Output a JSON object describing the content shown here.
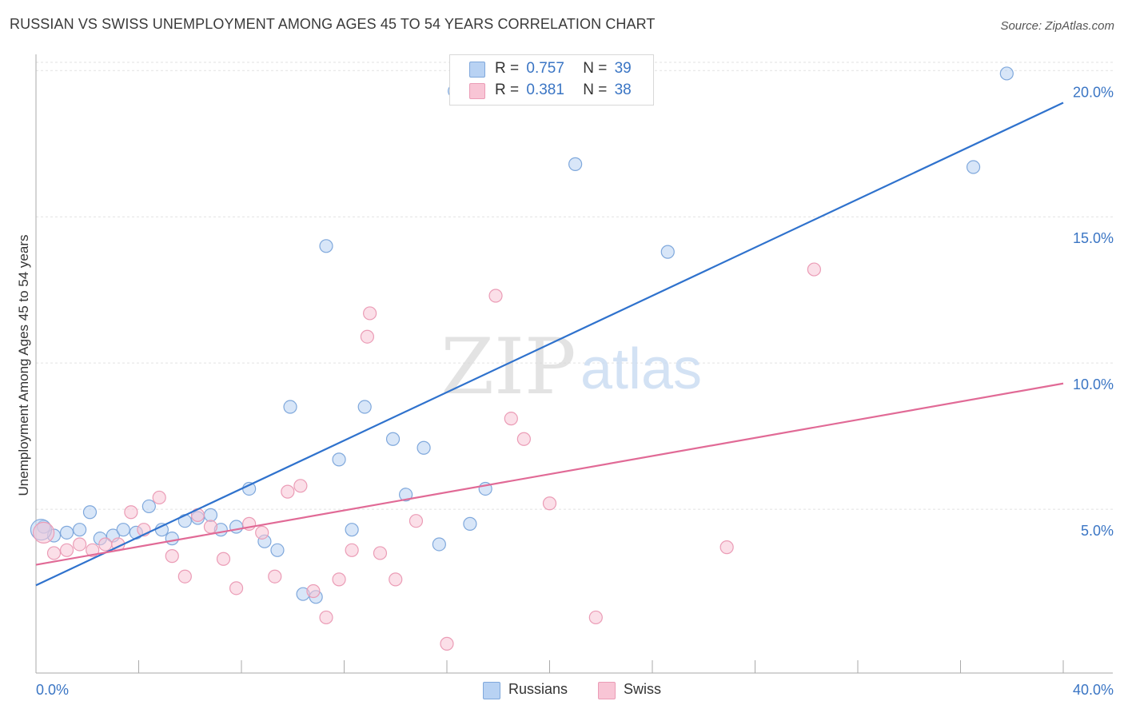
{
  "title": "RUSSIAN VS SWISS UNEMPLOYMENT AMONG AGES 45 TO 54 YEARS CORRELATION CHART",
  "source": "Source: ZipAtlas.com",
  "watermark": {
    "zip": "ZIP",
    "atlas": "atlas"
  },
  "legend_top": {
    "r_label": "R =",
    "n_label": "N =",
    "russians": {
      "r": "0.757",
      "n": "39"
    },
    "swiss": {
      "r": "0.381",
      "n": "38"
    }
  },
  "legend_bottom": {
    "russians": "Russians",
    "swiss": "Swiss"
  },
  "colors": {
    "russians_fill": "#b8d2f3",
    "russians_stroke": "#7fa8dc",
    "russians_line": "#2f72cd",
    "swiss_fill": "#f8c5d5",
    "swiss_stroke": "#eb9cb6",
    "swiss_line": "#e16a96",
    "axis_text": "#3a75c4",
    "grid": "#e2e2e2"
  },
  "chart_data": {
    "type": "scatter",
    "title": "RUSSIAN VS SWISS UNEMPLOYMENT AMONG AGES 45 TO 54 YEARS CORRELATION CHART",
    "xlabel": "",
    "ylabel": "Unemployment Among Ages 45 to 54 years",
    "xlim": [
      0,
      40
    ],
    "ylim": [
      0,
      20.5
    ],
    "x_tick_labels": [
      {
        "value": 0,
        "label": "0.0%"
      },
      {
        "value": 40,
        "label": "40.0%"
      }
    ],
    "x_minor_ticks": [
      0,
      4,
      8,
      12,
      16,
      20,
      24,
      28,
      32,
      36,
      40
    ],
    "y_ticks": [
      {
        "value": 5,
        "label": "5.0%"
      },
      {
        "value": 10,
        "label": "10.0%"
      },
      {
        "value": 15,
        "label": "15.0%"
      },
      {
        "value": 20,
        "label": "20.0%"
      }
    ],
    "grid": true,
    "legend_position": "top-center",
    "series": [
      {
        "name": "Russians",
        "r": 0.757,
        "n": 39,
        "trend": {
          "x": [
            0,
            40
          ],
          "y": [
            2.4,
            18.9
          ]
        },
        "points": [
          [
            0.3,
            4.4
          ],
          [
            0.7,
            4.1
          ],
          [
            1.2,
            4.2
          ],
          [
            1.7,
            4.3
          ],
          [
            2.1,
            4.9
          ],
          [
            2.5,
            4.0
          ],
          [
            3.0,
            4.1
          ],
          [
            3.4,
            4.3
          ],
          [
            3.9,
            4.2
          ],
          [
            4.4,
            5.1
          ],
          [
            4.9,
            4.3
          ],
          [
            5.3,
            4.0
          ],
          [
            5.8,
            4.6
          ],
          [
            6.3,
            4.7
          ],
          [
            6.8,
            4.8
          ],
          [
            7.2,
            4.3
          ],
          [
            7.8,
            4.4
          ],
          [
            8.3,
            5.7
          ],
          [
            8.9,
            3.9
          ],
          [
            9.4,
            3.6
          ],
          [
            9.9,
            8.5
          ],
          [
            10.4,
            2.1
          ],
          [
            10.9,
            2.0
          ],
          [
            11.3,
            14.0
          ],
          [
            11.8,
            6.7
          ],
          [
            12.3,
            4.3
          ],
          [
            12.8,
            8.5
          ],
          [
            13.9,
            7.4
          ],
          [
            14.4,
            5.5
          ],
          [
            15.1,
            7.1
          ],
          [
            15.7,
            3.8
          ],
          [
            16.3,
            19.3
          ],
          [
            16.9,
            4.5
          ],
          [
            17.5,
            5.7
          ],
          [
            21.0,
            16.8
          ],
          [
            24.6,
            13.8
          ],
          [
            36.5,
            16.7
          ],
          [
            37.8,
            19.9
          ],
          [
            0.2,
            4.3
          ]
        ]
      },
      {
        "name": "Swiss",
        "r": 0.381,
        "n": 38,
        "trend": {
          "x": [
            0,
            40
          ],
          "y": [
            3.1,
            9.3
          ]
        },
        "points": [
          [
            0.3,
            4.2
          ],
          [
            0.7,
            3.5
          ],
          [
            1.2,
            3.6
          ],
          [
            1.7,
            3.8
          ],
          [
            2.2,
            3.6
          ],
          [
            2.7,
            3.8
          ],
          [
            3.2,
            3.8
          ],
          [
            3.7,
            4.9
          ],
          [
            4.2,
            4.3
          ],
          [
            4.8,
            5.4
          ],
          [
            5.3,
            3.4
          ],
          [
            5.8,
            2.7
          ],
          [
            6.3,
            4.8
          ],
          [
            6.8,
            4.4
          ],
          [
            7.3,
            3.3
          ],
          [
            7.8,
            2.3
          ],
          [
            8.3,
            4.5
          ],
          [
            8.8,
            4.2
          ],
          [
            9.3,
            2.7
          ],
          [
            9.8,
            5.6
          ],
          [
            10.3,
            5.8
          ],
          [
            10.8,
            2.2
          ],
          [
            11.3,
            1.3
          ],
          [
            11.8,
            2.6
          ],
          [
            12.3,
            3.6
          ],
          [
            12.9,
            10.9
          ],
          [
            13.0,
            11.7
          ],
          [
            13.4,
            3.5
          ],
          [
            14.0,
            2.6
          ],
          [
            14.8,
            4.6
          ],
          [
            16.0,
            0.4
          ],
          [
            17.9,
            12.3
          ],
          [
            18.5,
            8.1
          ],
          [
            19.0,
            7.4
          ],
          [
            20.0,
            5.2
          ],
          [
            21.8,
            1.3
          ],
          [
            26.9,
            3.7
          ],
          [
            30.3,
            13.2
          ]
        ]
      }
    ]
  }
}
